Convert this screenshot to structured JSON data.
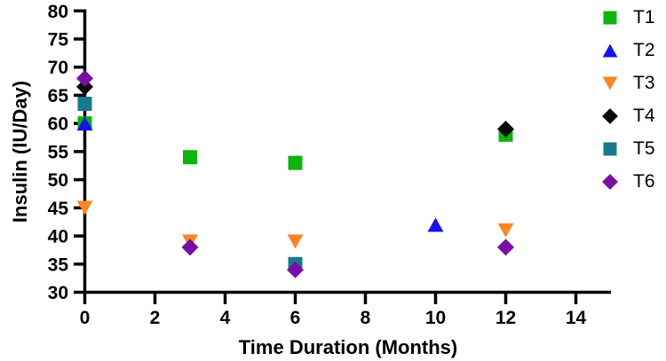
{
  "chart_data": {
    "type": "scatter",
    "title": "",
    "xlabel": "Time Duration (Months)",
    "ylabel": "Insulin (IU/Day)",
    "xlim": [
      0,
      15
    ],
    "ylim": [
      30,
      80
    ],
    "xticks": [
      0,
      2,
      4,
      6,
      8,
      10,
      12,
      14
    ],
    "yticks": [
      30,
      35,
      40,
      45,
      50,
      55,
      60,
      65,
      70,
      75,
      80
    ],
    "grid": false,
    "legend_position": "right",
    "axis_color": "#000000",
    "series": [
      {
        "name": "T1",
        "marker": "square",
        "color": "#0CB40C",
        "points": [
          [
            0,
            60
          ],
          [
            3,
            54
          ],
          [
            6,
            53
          ],
          [
            12,
            58
          ]
        ]
      },
      {
        "name": "T2",
        "marker": "triangle-up",
        "color": "#1414EB",
        "points": [
          [
            0,
            60
          ],
          [
            10,
            42
          ]
        ]
      },
      {
        "name": "T3",
        "marker": "triangle-down",
        "color": "#FF8522",
        "points": [
          [
            0,
            45
          ],
          [
            3,
            39
          ],
          [
            6,
            39
          ],
          [
            12,
            41
          ]
        ]
      },
      {
        "name": "T4",
        "marker": "diamond",
        "color": "#0A0A0A",
        "points": [
          [
            0,
            66.5
          ],
          [
            12,
            59
          ]
        ]
      },
      {
        "name": "T5",
        "marker": "square",
        "color": "#16798F",
        "points": [
          [
            0,
            63.5
          ],
          [
            6,
            35
          ]
        ]
      },
      {
        "name": "T6",
        "marker": "diamond",
        "color": "#7A0DA8",
        "points": [
          [
            0,
            68
          ],
          [
            3,
            38
          ],
          [
            6,
            34
          ],
          [
            12,
            38
          ]
        ]
      }
    ]
  }
}
